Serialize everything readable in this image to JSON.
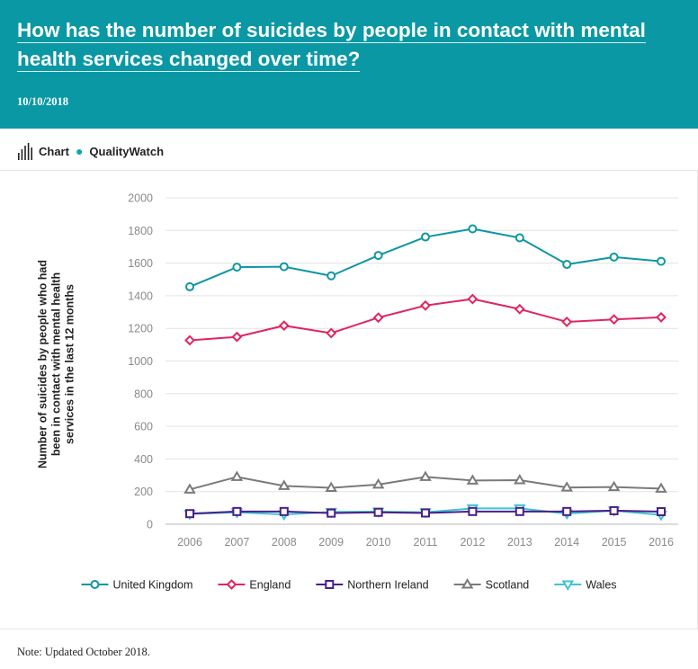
{
  "header": {
    "title": "How has the number of suicides by people in contact with mental health services changed over time?",
    "date": "10/10/2018",
    "background": "#0a98a5"
  },
  "brand": {
    "icon": "bar-chart-icon",
    "chart_label": "Chart",
    "source_label": "QualityWatch"
  },
  "note": "Note:  Updated October 2018.",
  "chart_data": {
    "type": "line",
    "title": "",
    "xlabel": "",
    "ylabel": "Number of suicides by people who had been in contact with mental health services in the last 12 months",
    "ylim": [
      0,
      2000
    ],
    "yticks": [
      0,
      200,
      400,
      600,
      800,
      1000,
      1200,
      1400,
      1600,
      1800,
      2000
    ],
    "grid": true,
    "legend_position": "bottom",
    "x": [
      "2006",
      "2007",
      "2008",
      "2009",
      "2010",
      "2011",
      "2012",
      "2013",
      "2014",
      "2015",
      "2016"
    ],
    "series": [
      {
        "name": "United Kingdom",
        "color": "#0e97a4",
        "marker": "circle",
        "values": [
          1455,
          1575,
          1578,
          1522,
          1647,
          1760,
          1810,
          1755,
          1592,
          1637,
          1611
        ]
      },
      {
        "name": "England",
        "color": "#e0255f",
        "marker": "diamond",
        "values": [
          1127,
          1148,
          1217,
          1171,
          1266,
          1340,
          1380,
          1318,
          1240,
          1255,
          1268
        ]
      },
      {
        "name": "Northern Ireland",
        "color": "#4a1f8a",
        "marker": "square",
        "values": [
          65,
          78,
          78,
          68,
          73,
          69,
          78,
          78,
          78,
          83,
          77
        ]
      },
      {
        "name": "Scotland",
        "color": "#7a7a7a",
        "marker": "triangle-up",
        "values": [
          213,
          290,
          235,
          223,
          243,
          290,
          268,
          270,
          225,
          228,
          218
        ]
      },
      {
        "name": "Wales",
        "color": "#3fc3d3",
        "marker": "triangle-down",
        "values": [
          63,
          73,
          60,
          75,
          77,
          73,
          97,
          97,
          65,
          83,
          57
        ]
      }
    ]
  }
}
